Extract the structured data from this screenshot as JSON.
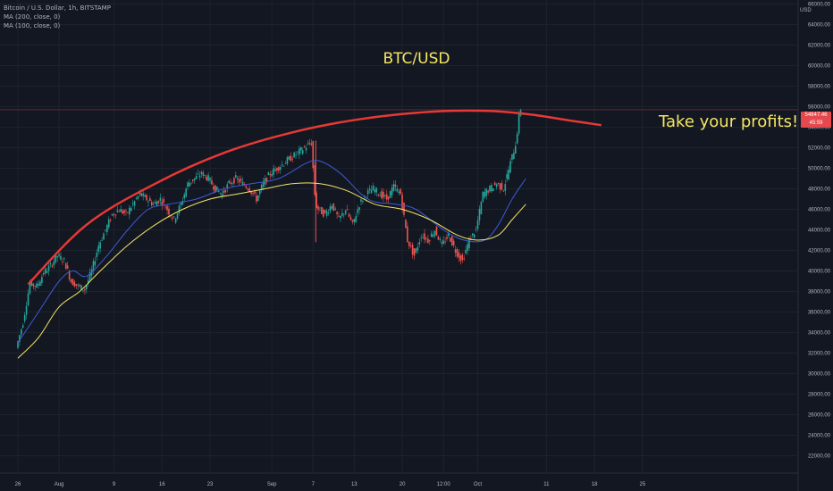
{
  "legend": {
    "symbol": "Bitcoin / U.S. Dollar, 1h, BITSTAMP",
    "ma200": "MA (200, close, 0)",
    "ma100": "MA (100, close, 0)"
  },
  "annotations": {
    "title": "BTC/USD",
    "note": "Take your profits!!!"
  },
  "price_axis": {
    "unit": "USD",
    "current_price": "54847.46",
    "countdown": "45:59"
  },
  "colors": {
    "background": "#131722",
    "grid": "#1e222d",
    "candle_up": "#26a69a",
    "candle_down": "#ef5350",
    "ma200": "#f5e663",
    "ma100": "#3b5bd6",
    "curve": "#e53935",
    "annotation_text": "#f5e663",
    "price_tag": "#e5494d"
  },
  "chart_data": {
    "type": "candlestick",
    "title": "",
    "series_name": "Bitcoin / U.S. Dollar, 1h, BITSTAMP",
    "ylabel": "USD",
    "ylim": [
      21000,
      66200
    ],
    "y_ticks": [
      22000,
      24000,
      26000,
      28000,
      30000,
      32000,
      34000,
      36000,
      38000,
      40000,
      42000,
      44000,
      46000,
      48000,
      50000,
      52000,
      54000,
      56000,
      58000,
      60000,
      62000,
      64000,
      66000
    ],
    "x_ticks": [
      {
        "label": "26",
        "day": 0
      },
      {
        "label": "Aug",
        "day": 6
      },
      {
        "label": "9",
        "day": 14
      },
      {
        "label": "16",
        "day": 21
      },
      {
        "label": "23",
        "day": 28
      },
      {
        "label": "Sep",
        "day": 37
      },
      {
        "label": "7",
        "day": 43
      },
      {
        "label": "13",
        "day": 49
      },
      {
        "label": "20",
        "day": 56
      },
      {
        "label": "12:00",
        "day": 62
      },
      {
        "label": "Oct",
        "day": 67
      },
      {
        "label": "11",
        "day": 77
      },
      {
        "label": "18",
        "day": 84
      },
      {
        "label": "25",
        "day": 91
      }
    ],
    "price_path": [
      {
        "day": 0,
        "price": 32500
      },
      {
        "day": 1,
        "price": 35000
      },
      {
        "day": 2,
        "price": 38800
      },
      {
        "day": 3,
        "price": 38500
      },
      {
        "day": 4,
        "price": 39800
      },
      {
        "day": 5,
        "price": 40500
      },
      {
        "day": 6,
        "price": 41500
      },
      {
        "day": 7,
        "price": 41000
      },
      {
        "day": 8,
        "price": 39000
      },
      {
        "day": 9,
        "price": 38500
      },
      {
        "day": 10,
        "price": 38200
      },
      {
        "day": 11,
        "price": 40000
      },
      {
        "day": 12,
        "price": 42500
      },
      {
        "day": 13,
        "price": 44000
      },
      {
        "day": 14,
        "price": 45500
      },
      {
        "day": 15,
        "price": 46000
      },
      {
        "day": 16,
        "price": 45500
      },
      {
        "day": 17,
        "price": 46500
      },
      {
        "day": 18,
        "price": 47500
      },
      {
        "day": 19,
        "price": 47000
      },
      {
        "day": 20,
        "price": 46500
      },
      {
        "day": 21,
        "price": 47000
      },
      {
        "day": 22,
        "price": 46000
      },
      {
        "day": 23,
        "price": 45000
      },
      {
        "day": 24,
        "price": 46500
      },
      {
        "day": 25,
        "price": 48500
      },
      {
        "day": 26,
        "price": 49000
      },
      {
        "day": 27,
        "price": 49500
      },
      {
        "day": 28,
        "price": 49000
      },
      {
        "day": 29,
        "price": 48000
      },
      {
        "day": 30,
        "price": 47500
      },
      {
        "day": 31,
        "price": 48500
      },
      {
        "day": 32,
        "price": 49000
      },
      {
        "day": 33,
        "price": 48500
      },
      {
        "day": 34,
        "price": 48000
      },
      {
        "day": 35,
        "price": 47000
      },
      {
        "day": 36,
        "price": 48500
      },
      {
        "day": 37,
        "price": 49500
      },
      {
        "day": 38,
        "price": 50000
      },
      {
        "day": 39,
        "price": 50500
      },
      {
        "day": 40,
        "price": 51000
      },
      {
        "day": 41,
        "price": 51500
      },
      {
        "day": 42,
        "price": 52000
      },
      {
        "day": 43,
        "price": 52500
      },
      {
        "day": 43.6,
        "price": 46500
      },
      {
        "day": 44,
        "price": 46000
      },
      {
        "day": 45,
        "price": 45500
      },
      {
        "day": 46,
        "price": 46500
      },
      {
        "day": 47,
        "price": 45000
      },
      {
        "day": 48,
        "price": 46000
      },
      {
        "day": 49,
        "price": 44500
      },
      {
        "day": 50,
        "price": 46500
      },
      {
        "day": 51,
        "price": 47500
      },
      {
        "day": 52,
        "price": 48000
      },
      {
        "day": 53,
        "price": 47500
      },
      {
        "day": 54,
        "price": 47000
      },
      {
        "day": 55,
        "price": 48200
      },
      {
        "day": 56,
        "price": 47500
      },
      {
        "day": 57,
        "price": 43000
      },
      {
        "day": 58,
        "price": 41500
      },
      {
        "day": 59,
        "price": 43500
      },
      {
        "day": 60,
        "price": 43000
      },
      {
        "day": 61,
        "price": 44000
      },
      {
        "day": 62,
        "price": 42500
      },
      {
        "day": 63,
        "price": 43500
      },
      {
        "day": 64,
        "price": 42000
      },
      {
        "day": 65,
        "price": 41000
      },
      {
        "day": 66,
        "price": 43000
      },
      {
        "day": 67,
        "price": 44000
      },
      {
        "day": 68,
        "price": 47500
      },
      {
        "day": 69,
        "price": 48000
      },
      {
        "day": 70,
        "price": 48500
      },
      {
        "day": 71,
        "price": 48000
      },
      {
        "day": 72,
        "price": 50500
      },
      {
        "day": 72.8,
        "price": 52500
      },
      {
        "day": 73.4,
        "price": 55800
      }
    ],
    "ma100": [
      {
        "day": 0,
        "price": 33000
      },
      {
        "day": 3,
        "price": 36000
      },
      {
        "day": 6,
        "price": 39000
      },
      {
        "day": 8,
        "price": 40000
      },
      {
        "day": 10,
        "price": 39500
      },
      {
        "day": 13,
        "price": 41500
      },
      {
        "day": 16,
        "price": 44000
      },
      {
        "day": 19,
        "price": 46000
      },
      {
        "day": 22,
        "price": 46500
      },
      {
        "day": 26,
        "price": 47000
      },
      {
        "day": 30,
        "price": 48000
      },
      {
        "day": 34,
        "price": 48500
      },
      {
        "day": 38,
        "price": 49000
      },
      {
        "day": 42,
        "price": 50500
      },
      {
        "day": 44,
        "price": 50700
      },
      {
        "day": 47,
        "price": 49500
      },
      {
        "day": 51,
        "price": 47000
      },
      {
        "day": 55,
        "price": 46500
      },
      {
        "day": 58,
        "price": 46000
      },
      {
        "day": 62,
        "price": 44000
      },
      {
        "day": 65,
        "price": 43000
      },
      {
        "day": 68,
        "price": 43000
      },
      {
        "day": 70,
        "price": 44500
      },
      {
        "day": 72,
        "price": 47000
      },
      {
        "day": 74,
        "price": 49000
      }
    ],
    "ma200": [
      {
        "day": 0,
        "price": 31500
      },
      {
        "day": 3,
        "price": 33500
      },
      {
        "day": 6,
        "price": 36500
      },
      {
        "day": 9,
        "price": 38000
      },
      {
        "day": 12,
        "price": 40000
      },
      {
        "day": 16,
        "price": 42500
      },
      {
        "day": 20,
        "price": 44500
      },
      {
        "day": 24,
        "price": 46000
      },
      {
        "day": 28,
        "price": 47000
      },
      {
        "day": 32,
        "price": 47500
      },
      {
        "day": 36,
        "price": 48000
      },
      {
        "day": 40,
        "price": 48500
      },
      {
        "day": 44,
        "price": 48500
      },
      {
        "day": 48,
        "price": 47800
      },
      {
        "day": 52,
        "price": 46500
      },
      {
        "day": 56,
        "price": 46000
      },
      {
        "day": 60,
        "price": 45000
      },
      {
        "day": 64,
        "price": 43500
      },
      {
        "day": 67,
        "price": 43000
      },
      {
        "day": 70,
        "price": 43500
      },
      {
        "day": 72,
        "price": 45000
      },
      {
        "day": 74,
        "price": 46500
      }
    ],
    "annotation_curve": [
      {
        "day": 1.5,
        "price": 38700
      },
      {
        "day": 10,
        "price": 44500
      },
      {
        "day": 20,
        "price": 48500
      },
      {
        "day": 30,
        "price": 51500
      },
      {
        "day": 40,
        "price": 53500
      },
      {
        "day": 50,
        "price": 54800
      },
      {
        "day": 60,
        "price": 55500
      },
      {
        "day": 68,
        "price": 55600
      },
      {
        "day": 74,
        "price": 55300
      },
      {
        "day": 80,
        "price": 54700
      },
      {
        "day": 85,
        "price": 54200
      }
    ],
    "horizontal_line": 55700,
    "current_price": 54847.46
  }
}
